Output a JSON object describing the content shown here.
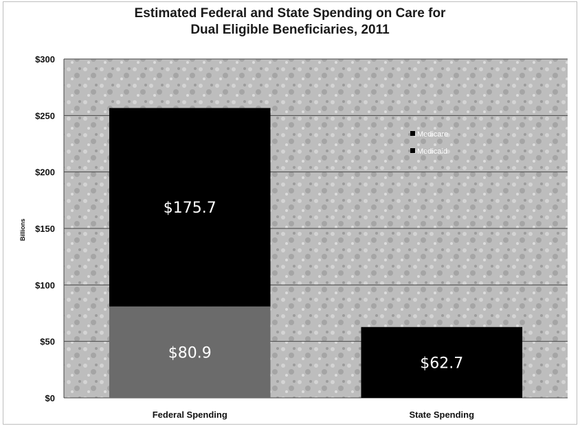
{
  "chart_data": {
    "type": "bar",
    "stacked": true,
    "title_line1": "Estimated Federal and State Spending on Care for",
    "title_line2": "Dual Eligible Beneficiaries, 2011",
    "ylabel": "Billions",
    "xlabel": "",
    "categories": [
      "Federal Spending",
      "State Spending"
    ],
    "series": [
      {
        "name": "Medicaid",
        "values": [
          80.9,
          62.7
        ],
        "color": "#6b6b6b"
      },
      {
        "name": "Medicare",
        "values": [
          175.7,
          0
        ],
        "color": "#000000"
      }
    ],
    "data_labels": [
      {
        "category": 0,
        "series": 0,
        "text": "$80.9"
      },
      {
        "category": 0,
        "series": 1,
        "text": "$175.7"
      },
      {
        "category": 1,
        "series": 0,
        "text": "$62.7"
      }
    ],
    "state_bar_color": "#000000",
    "ylim": [
      0,
      300
    ],
    "yticks": [
      0,
      50,
      100,
      150,
      200,
      250,
      300
    ],
    "ytick_labels": [
      "$0",
      "$50",
      "$100",
      "$150",
      "$200",
      "$250",
      "$300"
    ],
    "legend": [
      "Medicare",
      "Medicaid"
    ],
    "legend_position": "inside-top-right",
    "grid": true,
    "plot_background": "#b8b8b8"
  }
}
